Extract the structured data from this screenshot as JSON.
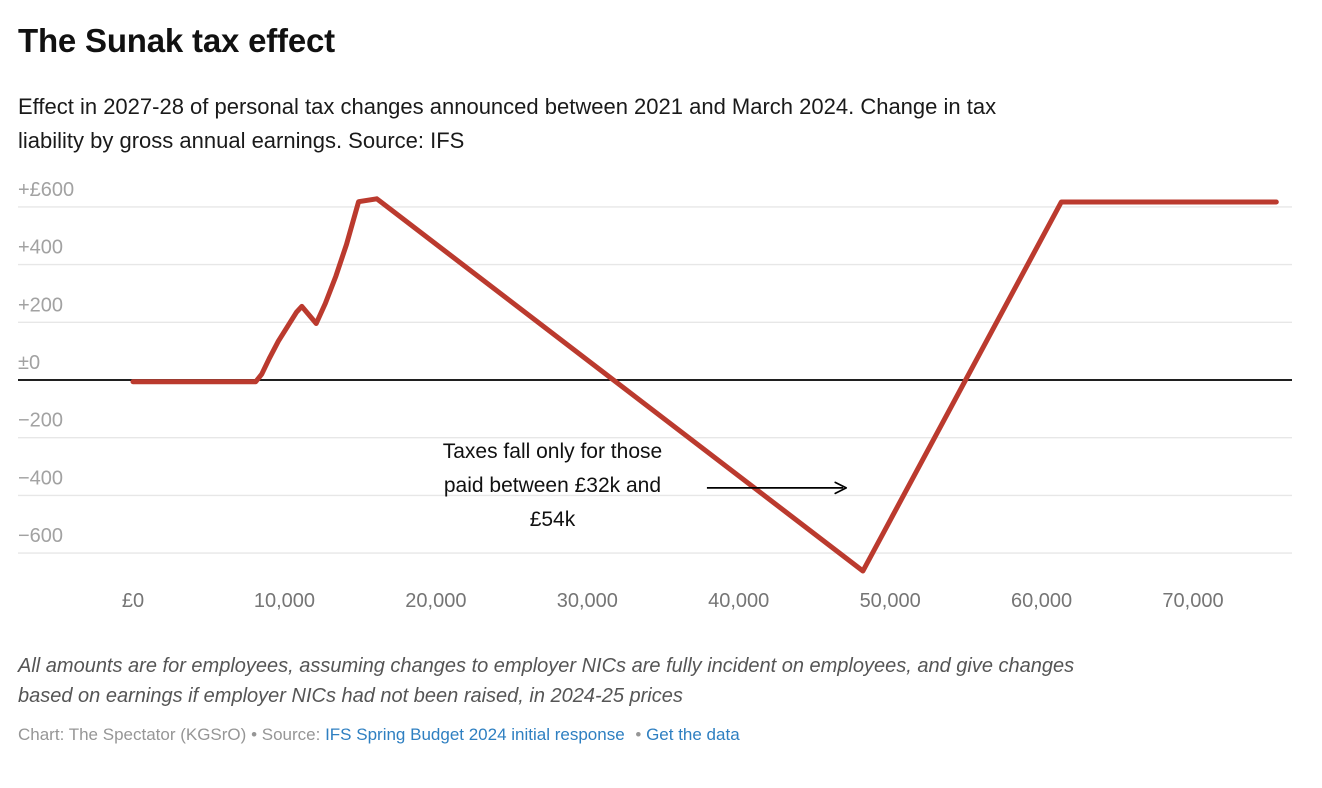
{
  "chart_data": {
    "type": "line",
    "title": "The Sunak tax effect",
    "subtitle": "Effect in 2027-28 of personal tax changes announced between 2021 and March 2024. Change in tax liability by gross annual earnings. Source: IFS",
    "subtitle_lines": [
      "Effect in 2027-28 of personal tax changes announced between 2021 and March 2024. Change in tax",
      "liability by gross annual earnings. Source: IFS"
    ],
    "grid": "horizontal",
    "legend": "none",
    "x_domain": [
      0,
      76500
    ],
    "y_domain": [
      -700,
      660
    ],
    "x_ticks": [
      {
        "value": 0,
        "label": "£0"
      },
      {
        "value": 10000,
        "label": "10,000"
      },
      {
        "value": 20000,
        "label": "20,000"
      },
      {
        "value": 30000,
        "label": "30,000"
      },
      {
        "value": 40000,
        "label": "40,000"
      },
      {
        "value": 50000,
        "label": "50,000"
      },
      {
        "value": 60000,
        "label": "60,000"
      },
      {
        "value": 70000,
        "label": "70,000"
      }
    ],
    "y_ticks": [
      {
        "value": 600,
        "label": "+£600"
      },
      {
        "value": 400,
        "label": "+400"
      },
      {
        "value": 200,
        "label": "+200"
      },
      {
        "value": 0,
        "label": "±0"
      },
      {
        "value": -200,
        "label": "−200"
      },
      {
        "value": -400,
        "label": "−400"
      },
      {
        "value": -600,
        "label": "−600"
      }
    ],
    "baseline_value": 0,
    "series": [
      {
        "name": "Change in tax liability (£ per year) by gross annual earnings",
        "color": "#bb3a2e",
        "points": [
          [
            0,
            -6
          ],
          [
            8100,
            -6
          ],
          [
            8500,
            20
          ],
          [
            9000,
            75
          ],
          [
            9600,
            135
          ],
          [
            10200,
            185
          ],
          [
            10800,
            235
          ],
          [
            11150,
            255
          ],
          [
            12100,
            196
          ],
          [
            12700,
            265
          ],
          [
            13400,
            360
          ],
          [
            14100,
            470
          ],
          [
            14900,
            618
          ],
          [
            16100,
            628
          ],
          [
            48200,
            -662
          ],
          [
            61300,
            617
          ],
          [
            75500,
            617
          ]
        ]
      }
    ],
    "annotation": {
      "text_lines": [
        "Taxes fall only for those",
        "paid between £32k and",
        "£54k"
      ],
      "x_value": 27700,
      "y_value": -364,
      "arrow": {
        "x1_value": 37900,
        "x2_value": 47100,
        "y_value": -374
      }
    }
  },
  "footer": {
    "note": "All amounts are for employees, assuming changes to employer NICs are fully incident on employees, and give changes based on earnings if employer NICs had not been raised, in 2024-25 prices",
    "note_lines": [
      "All amounts are for employees, assuming changes to employer NICs are fully incident on employees, and give changes",
      "based on earnings if employer NICs had not been raised, in 2024-25 prices"
    ],
    "credit_byline": "Chart: The Spectator (KGSrO)",
    "separator": "•",
    "source_label": "Source:",
    "source_link": "IFS Spring Budget 2024 initial response",
    "get_data_link": "Get the data"
  },
  "colors": {
    "line": "#bb3a2e",
    "gridline": "#e7e7e7",
    "zero_line": "#000000",
    "y_tick_label": "#a2a2a2",
    "x_tick_label": "#757575",
    "annotation_text": "#111111",
    "link": "#2e7fc1",
    "note_text": "#555555",
    "credit_text": "#969696"
  }
}
